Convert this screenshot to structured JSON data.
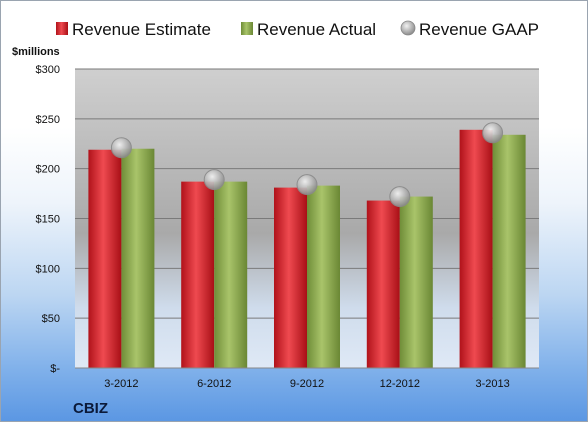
{
  "chart_data": {
    "type": "bar",
    "ylabel": "$millions",
    "categories": [
      "3-2012",
      "6-2012",
      "9-2012",
      "12-2012",
      "3-2013"
    ],
    "series": [
      {
        "name": "Revenue Estimate",
        "kind": "bar",
        "color": "#d61f26",
        "values": [
          219,
          187,
          181,
          168,
          239
        ]
      },
      {
        "name": "Revenue Actual",
        "kind": "bar",
        "color": "#8fae4f",
        "values": [
          220,
          187,
          183,
          172,
          234
        ]
      },
      {
        "name": "Revenue GAAP",
        "kind": "marker",
        "color": "#b8b8b8",
        "values": [
          221,
          189,
          184,
          172,
          236
        ]
      }
    ],
    "ylim": [
      0,
      300
    ],
    "yticks": [
      0,
      50,
      100,
      150,
      200,
      250,
      300
    ],
    "ytick_labels": [
      "$-",
      "$50",
      "$100",
      "$150",
      "$200",
      "$250",
      "$300"
    ],
    "grid": true,
    "legend_position": "top"
  },
  "footer": {
    "brand": "CBIZ"
  }
}
